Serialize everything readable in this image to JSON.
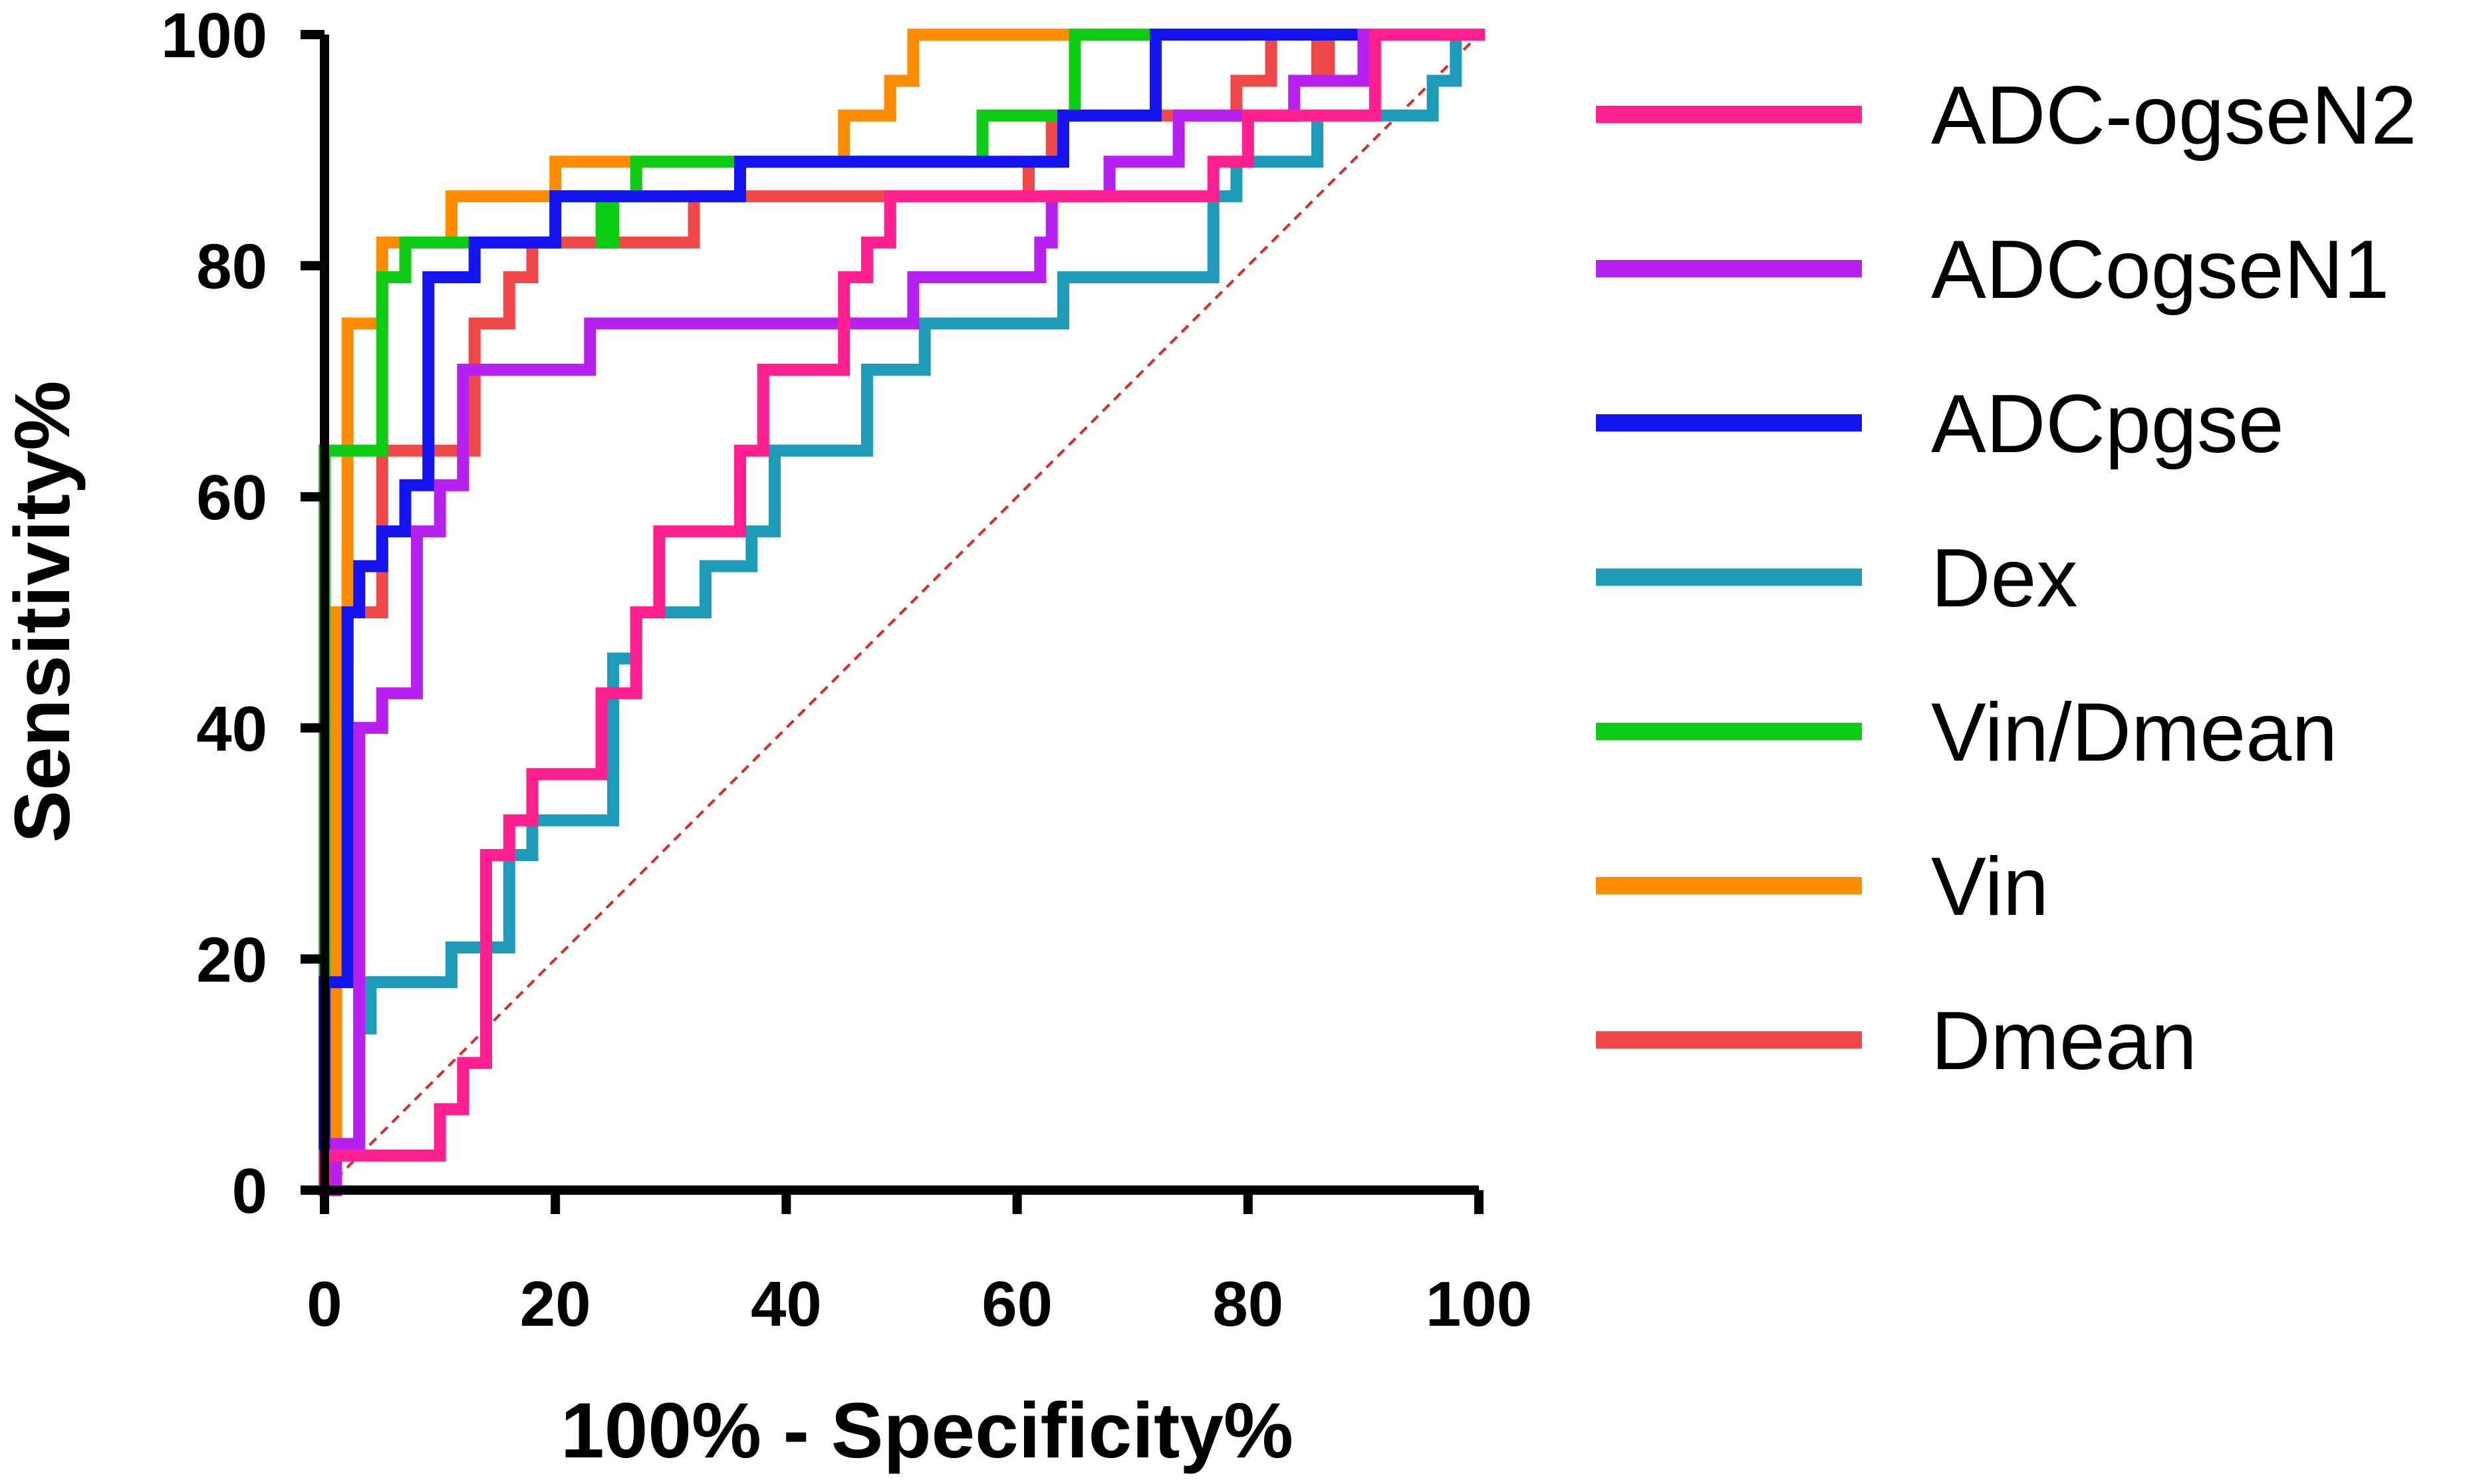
{
  "chart_data": {
    "type": "line",
    "title": "",
    "xlabel": "100% - Specificity%",
    "ylabel": "Sensitivity%",
    "xlim": [
      0,
      100
    ],
    "ylim": [
      0,
      100
    ],
    "xticks": [
      "0",
      "20",
      "40",
      "60",
      "80",
      "100"
    ],
    "yticks": [
      "0",
      "20",
      "40",
      "60",
      "80",
      "100"
    ],
    "reference_line": {
      "x": [
        0,
        100
      ],
      "y": [
        0,
        100
      ],
      "color": "#E02828",
      "style": "dashed"
    },
    "legend_position": "right",
    "series": [
      {
        "name": "ADC-ogseN2",
        "color": "#FF1F8E",
        "points": [
          [
            0,
            0
          ],
          [
            0,
            3
          ],
          [
            10,
            3
          ],
          [
            10,
            7
          ],
          [
            12,
            7
          ],
          [
            12,
            11
          ],
          [
            14,
            11
          ],
          [
            14,
            29
          ],
          [
            16,
            29
          ],
          [
            16,
            32
          ],
          [
            18,
            32
          ],
          [
            18,
            36
          ],
          [
            24,
            36
          ],
          [
            24,
            43
          ],
          [
            27,
            43
          ],
          [
            27,
            50
          ],
          [
            29,
            50
          ],
          [
            29,
            57
          ],
          [
            36,
            57
          ],
          [
            36,
            64
          ],
          [
            38,
            64
          ],
          [
            38,
            71
          ],
          [
            45,
            71
          ],
          [
            45,
            79
          ],
          [
            47,
            79
          ],
          [
            47,
            82
          ],
          [
            49,
            82
          ],
          [
            49,
            86
          ],
          [
            67,
            86
          ],
          [
            67,
            86
          ],
          [
            77,
            86
          ],
          [
            77,
            89
          ],
          [
            80,
            89
          ],
          [
            80,
            93
          ],
          [
            91,
            93
          ],
          [
            91,
            100
          ],
          [
            100,
            100
          ]
        ]
      },
      {
        "name": "ADCogseN1",
        "color": "#B621F0",
        "points": [
          [
            0,
            0
          ],
          [
            1,
            0
          ],
          [
            1,
            4
          ],
          [
            3,
            4
          ],
          [
            3,
            40
          ],
          [
            5,
            40
          ],
          [
            5,
            43
          ],
          [
            8,
            43
          ],
          [
            8,
            57
          ],
          [
            10,
            57
          ],
          [
            10,
            61
          ],
          [
            12,
            61
          ],
          [
            12,
            71
          ],
          [
            23,
            71
          ],
          [
            23,
            75
          ],
          [
            47,
            75
          ],
          [
            47,
            75
          ],
          [
            51,
            75
          ],
          [
            51,
            79
          ],
          [
            62,
            79
          ],
          [
            62,
            82
          ],
          [
            63,
            82
          ],
          [
            63,
            86
          ],
          [
            68,
            86
          ],
          [
            68,
            89
          ],
          [
            74,
            89
          ],
          [
            74,
            93
          ],
          [
            84,
            93
          ],
          [
            84,
            96
          ],
          [
            90,
            96
          ],
          [
            90,
            100
          ],
          [
            100,
            100
          ]
        ]
      },
      {
        "name": "ADCpgse",
        "color": "#1414F0",
        "points": [
          [
            0,
            0
          ],
          [
            0,
            18
          ],
          [
            2,
            18
          ],
          [
            2,
            50
          ],
          [
            3,
            50
          ],
          [
            3,
            54
          ],
          [
            5,
            54
          ],
          [
            5,
            57
          ],
          [
            7,
            57
          ],
          [
            7,
            61
          ],
          [
            9,
            61
          ],
          [
            9,
            79
          ],
          [
            13,
            79
          ],
          [
            13,
            82
          ],
          [
            20,
            82
          ],
          [
            20,
            86
          ],
          [
            36,
            86
          ],
          [
            36,
            89
          ],
          [
            64,
            89
          ],
          [
            64,
            93
          ],
          [
            72,
            93
          ],
          [
            72,
            100
          ],
          [
            100,
            100
          ]
        ]
      },
      {
        "name": "Dex",
        "color": "#1E9BB8",
        "points": [
          [
            0,
            0
          ],
          [
            0,
            4
          ],
          [
            3,
            4
          ],
          [
            3,
            14
          ],
          [
            4,
            14
          ],
          [
            4,
            18
          ],
          [
            11,
            18
          ],
          [
            11,
            21
          ],
          [
            16,
            21
          ],
          [
            16,
            29
          ],
          [
            18,
            29
          ],
          [
            18,
            32
          ],
          [
            25,
            32
          ],
          [
            25,
            46
          ],
          [
            27,
            46
          ],
          [
            27,
            50
          ],
          [
            29,
            50
          ],
          [
            29,
            50
          ],
          [
            33,
            50
          ],
          [
            33,
            54
          ],
          [
            37,
            54
          ],
          [
            37,
            57
          ],
          [
            39,
            57
          ],
          [
            39,
            64
          ],
          [
            47,
            64
          ],
          [
            47,
            71
          ],
          [
            52,
            71
          ],
          [
            52,
            75
          ],
          [
            64,
            75
          ],
          [
            64,
            79
          ],
          [
            77,
            79
          ],
          [
            77,
            86
          ],
          [
            79,
            86
          ],
          [
            79,
            89
          ],
          [
            86,
            89
          ],
          [
            86,
            93
          ],
          [
            96,
            93
          ],
          [
            96,
            96
          ],
          [
            98,
            96
          ],
          [
            98,
            100
          ],
          [
            100,
            100
          ]
        ]
      },
      {
        "name": "Vin/Dmean",
        "color": "#0ECB14",
        "points": [
          [
            0,
            0
          ],
          [
            0,
            18
          ],
          [
            0,
            64
          ],
          [
            5,
            64
          ],
          [
            5,
            79
          ],
          [
            7,
            79
          ],
          [
            7,
            82
          ],
          [
            12,
            82
          ],
          [
            12,
            82
          ],
          [
            20,
            82
          ],
          [
            20,
            86
          ],
          [
            24,
            86
          ],
          [
            24,
            82
          ],
          [
            25,
            82
          ],
          [
            25,
            86
          ],
          [
            27,
            86
          ],
          [
            27,
            89
          ],
          [
            36,
            89
          ],
          [
            36,
            89
          ],
          [
            57,
            89
          ],
          [
            57,
            93
          ],
          [
            61,
            93
          ],
          [
            61,
            93
          ],
          [
            65,
            93
          ],
          [
            65,
            100
          ],
          [
            70,
            100
          ],
          [
            70,
            100
          ],
          [
            100,
            100
          ]
        ]
      },
      {
        "name": "Vin",
        "color": "#FF8C00",
        "points": [
          [
            0,
            0
          ],
          [
            0,
            4
          ],
          [
            1,
            4
          ],
          [
            1,
            50
          ],
          [
            2,
            50
          ],
          [
            2,
            75
          ],
          [
            5,
            75
          ],
          [
            5,
            82
          ],
          [
            7,
            82
          ],
          [
            7,
            82
          ],
          [
            11,
            82
          ],
          [
            11,
            86
          ],
          [
            20,
            86
          ],
          [
            20,
            89
          ],
          [
            36,
            89
          ],
          [
            36,
            89
          ],
          [
            43,
            89
          ],
          [
            43,
            89
          ],
          [
            45,
            89
          ],
          [
            45,
            93
          ],
          [
            49,
            93
          ],
          [
            49,
            96
          ],
          [
            51,
            96
          ],
          [
            51,
            100
          ],
          [
            100,
            100
          ]
        ]
      },
      {
        "name": "Dmean",
        "color": "#F04848",
        "points": [
          [
            0,
            0
          ],
          [
            0,
            4
          ],
          [
            1,
            4
          ],
          [
            1,
            46
          ],
          [
            2,
            46
          ],
          [
            2,
            54
          ],
          [
            3,
            54
          ],
          [
            3,
            50
          ],
          [
            5,
            50
          ],
          [
            5,
            64
          ],
          [
            9,
            64
          ],
          [
            9,
            64
          ],
          [
            13,
            64
          ],
          [
            13,
            75
          ],
          [
            16,
            75
          ],
          [
            16,
            79
          ],
          [
            18,
            79
          ],
          [
            18,
            82
          ],
          [
            26,
            82
          ],
          [
            26,
            82
          ],
          [
            32,
            82
          ],
          [
            32,
            86
          ],
          [
            48,
            86
          ],
          [
            48,
            86
          ],
          [
            61,
            86
          ],
          [
            61,
            89
          ],
          [
            63,
            89
          ],
          [
            63,
            93
          ],
          [
            79,
            93
          ],
          [
            79,
            96
          ],
          [
            82,
            96
          ],
          [
            82,
            100
          ],
          [
            86,
            100
          ],
          [
            86,
            96
          ],
          [
            87,
            96
          ],
          [
            87,
            100
          ],
          [
            100,
            100
          ]
        ]
      }
    ]
  }
}
